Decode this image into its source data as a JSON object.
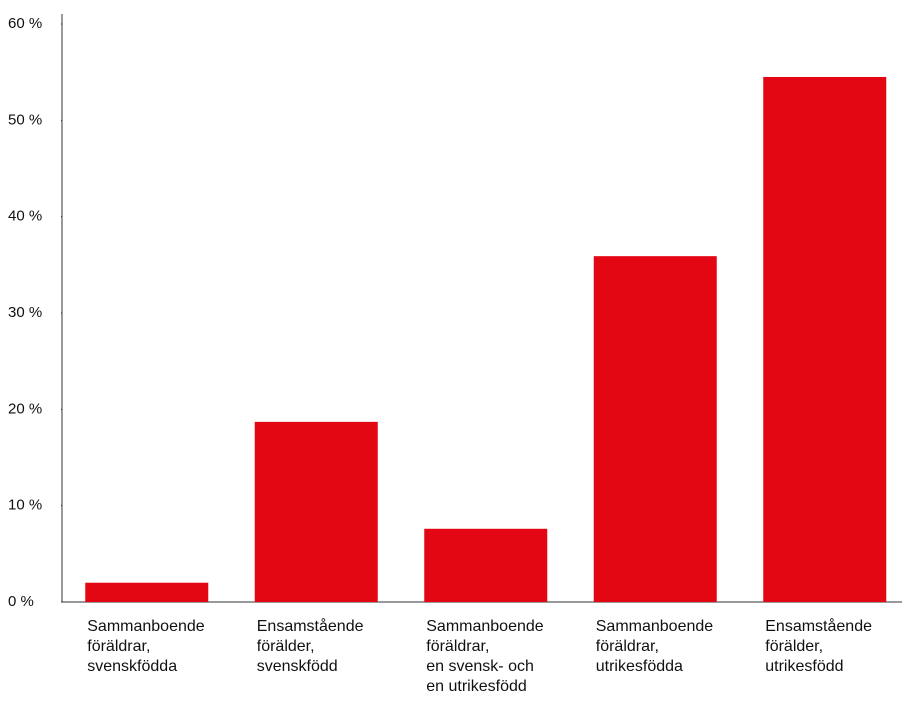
{
  "chart_data": {
    "type": "bar",
    "categories": [
      "Sammanboende\nföräldrar,\nsvenskfödda",
      "Ensamstående\nförälder,\nsvenskfödd",
      "Sammanboende\nföräldrar,\nen svensk- och\nen utrikesfödd",
      "Sammanboende\nföräldrar,\nutrikesfödda",
      "Ensamstående\nförälder,\nutrikesfödd"
    ],
    "values": [
      2.0,
      18.7,
      7.6,
      35.9,
      54.5
    ],
    "color": "#e30613",
    "ylim": [
      0,
      60
    ],
    "yticks": [
      {
        "value": 0,
        "label": "0 %"
      },
      {
        "value": 10,
        "label": "10 %"
      },
      {
        "value": 20,
        "label": "20 %"
      },
      {
        "value": 30,
        "label": "30 %"
      },
      {
        "value": 40,
        "label": "40 %"
      },
      {
        "value": 50,
        "label": "50 %"
      },
      {
        "value": 60,
        "label": "60 %"
      }
    ],
    "grid": false
  }
}
